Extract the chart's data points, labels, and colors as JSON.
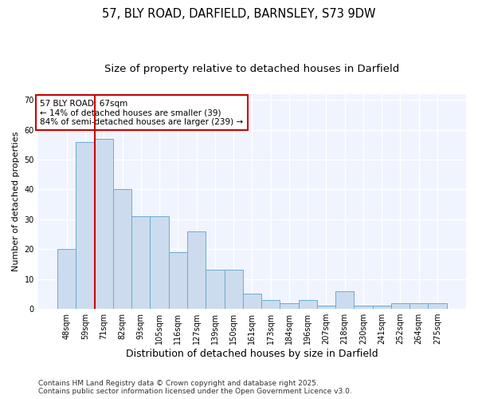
{
  "title1": "57, BLY ROAD, DARFIELD, BARNSLEY, S73 9DW",
  "title2": "Size of property relative to detached houses in Darfield",
  "xlabel": "Distribution of detached houses by size in Darfield",
  "ylabel": "Number of detached properties",
  "categories": [
    "48sqm",
    "59sqm",
    "71sqm",
    "82sqm",
    "93sqm",
    "105sqm",
    "116sqm",
    "127sqm",
    "139sqm",
    "150sqm",
    "161sqm",
    "173sqm",
    "184sqm",
    "196sqm",
    "207sqm",
    "218sqm",
    "230sqm",
    "241sqm",
    "252sqm",
    "264sqm",
    "275sqm"
  ],
  "values": [
    20,
    56,
    57,
    40,
    31,
    31,
    19,
    26,
    13,
    13,
    5,
    3,
    2,
    3,
    1,
    6,
    1,
    1,
    2,
    2,
    2
  ],
  "bar_color": "#ccdcee",
  "bar_edge_color": "#6aaad4",
  "vline_x_index": 1.5,
  "vline_color": "#cc0000",
  "annotation_text": "57 BLY ROAD: 67sqm\n← 14% of detached houses are smaller (39)\n84% of semi-detached houses are larger (239) →",
  "annotation_box_facecolor": "#ffffff",
  "annotation_box_edgecolor": "#cc0000",
  "ylim": [
    0,
    72
  ],
  "yticks": [
    0,
    10,
    20,
    30,
    40,
    50,
    60,
    70
  ],
  "footer": "Contains HM Land Registry data © Crown copyright and database right 2025.\nContains public sector information licensed under the Open Government Licence v3.0.",
  "fig_facecolor": "#ffffff",
  "axes_facecolor": "#f0f4ff",
  "title1_fontsize": 10.5,
  "title2_fontsize": 9.5,
  "xlabel_fontsize": 9,
  "ylabel_fontsize": 8,
  "tick_fontsize": 7,
  "annotation_fontsize": 7.5,
  "footer_fontsize": 6.5
}
